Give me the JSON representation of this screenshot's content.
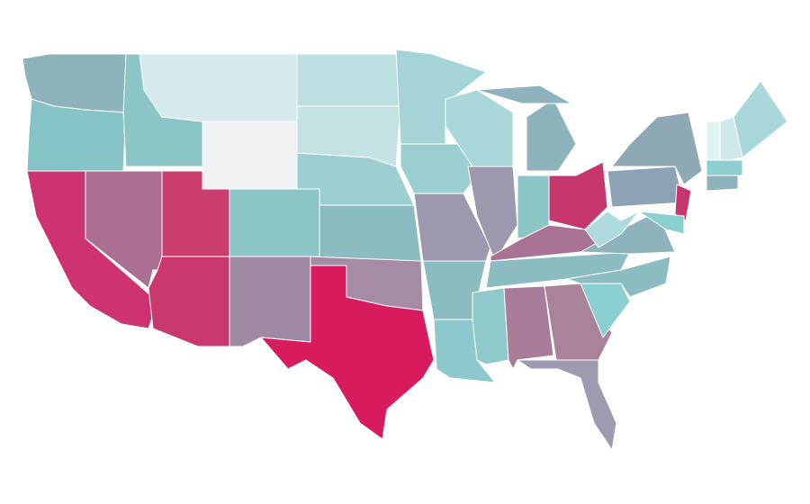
{
  "map": {
    "regions": [
      {
        "color": "#8fb3bd"
      },
      {
        "color": "#86c3c6"
      },
      {
        "color": "#cc3370"
      },
      {
        "color": "#ad6e93"
      },
      {
        "color": "#8cc5c8"
      },
      {
        "color": "#d6eaee"
      },
      {
        "color": "#f1f2f4"
      },
      {
        "color": "#cb3c71"
      },
      {
        "color": "#c8386f"
      },
      {
        "color": "#8cc5c8"
      },
      {
        "color": "#a08aa3"
      },
      {
        "color": "#bcdfe1"
      },
      {
        "color": "#c4e1e4"
      },
      {
        "color": "#9ccfd2"
      },
      {
        "color": "#8bbcc2"
      },
      {
        "color": "#a68ba4"
      },
      {
        "color": "#d81b5f"
      },
      {
        "color": "#a5d4d7"
      },
      {
        "color": "#9ccfd2"
      },
      {
        "color": "#9e98ae"
      },
      {
        "color": "#8bbcc2"
      },
      {
        "color": "#8cc8cc"
      },
      {
        "color": "#a9d7da"
      },
      {
        "color": "#9e98ae"
      },
      {
        "color": "#8fb3bd"
      },
      {
        "color": "#8fb3bd"
      },
      {
        "color": "#8cc5c8"
      },
      {
        "color": "#c5376d"
      },
      {
        "color": "#a87395"
      },
      {
        "color": "#8bbcc2"
      },
      {
        "color": "#8fc9cc"
      },
      {
        "color": "#a97c9a"
      },
      {
        "color": "#a98399"
      },
      {
        "color": "#a09ab0"
      },
      {
        "color": "#8ccfd0"
      },
      {
        "color": "#8bbcc2"
      },
      {
        "color": "#8fb3bd"
      },
      {
        "color": "#b0dbde"
      },
      {
        "color": "#8ea2b6"
      },
      {
        "color": "#8fa8b6"
      },
      {
        "color": "#c5376d"
      },
      {
        "color": "#8ccfd0"
      },
      {
        "color": "#e3f2f2"
      },
      {
        "color": "#cfe8ea"
      },
      {
        "color": "#a9d7da"
      },
      {
        "color": "#8ecdd0"
      },
      {
        "color": "#8fb3bd"
      }
    ]
  }
}
